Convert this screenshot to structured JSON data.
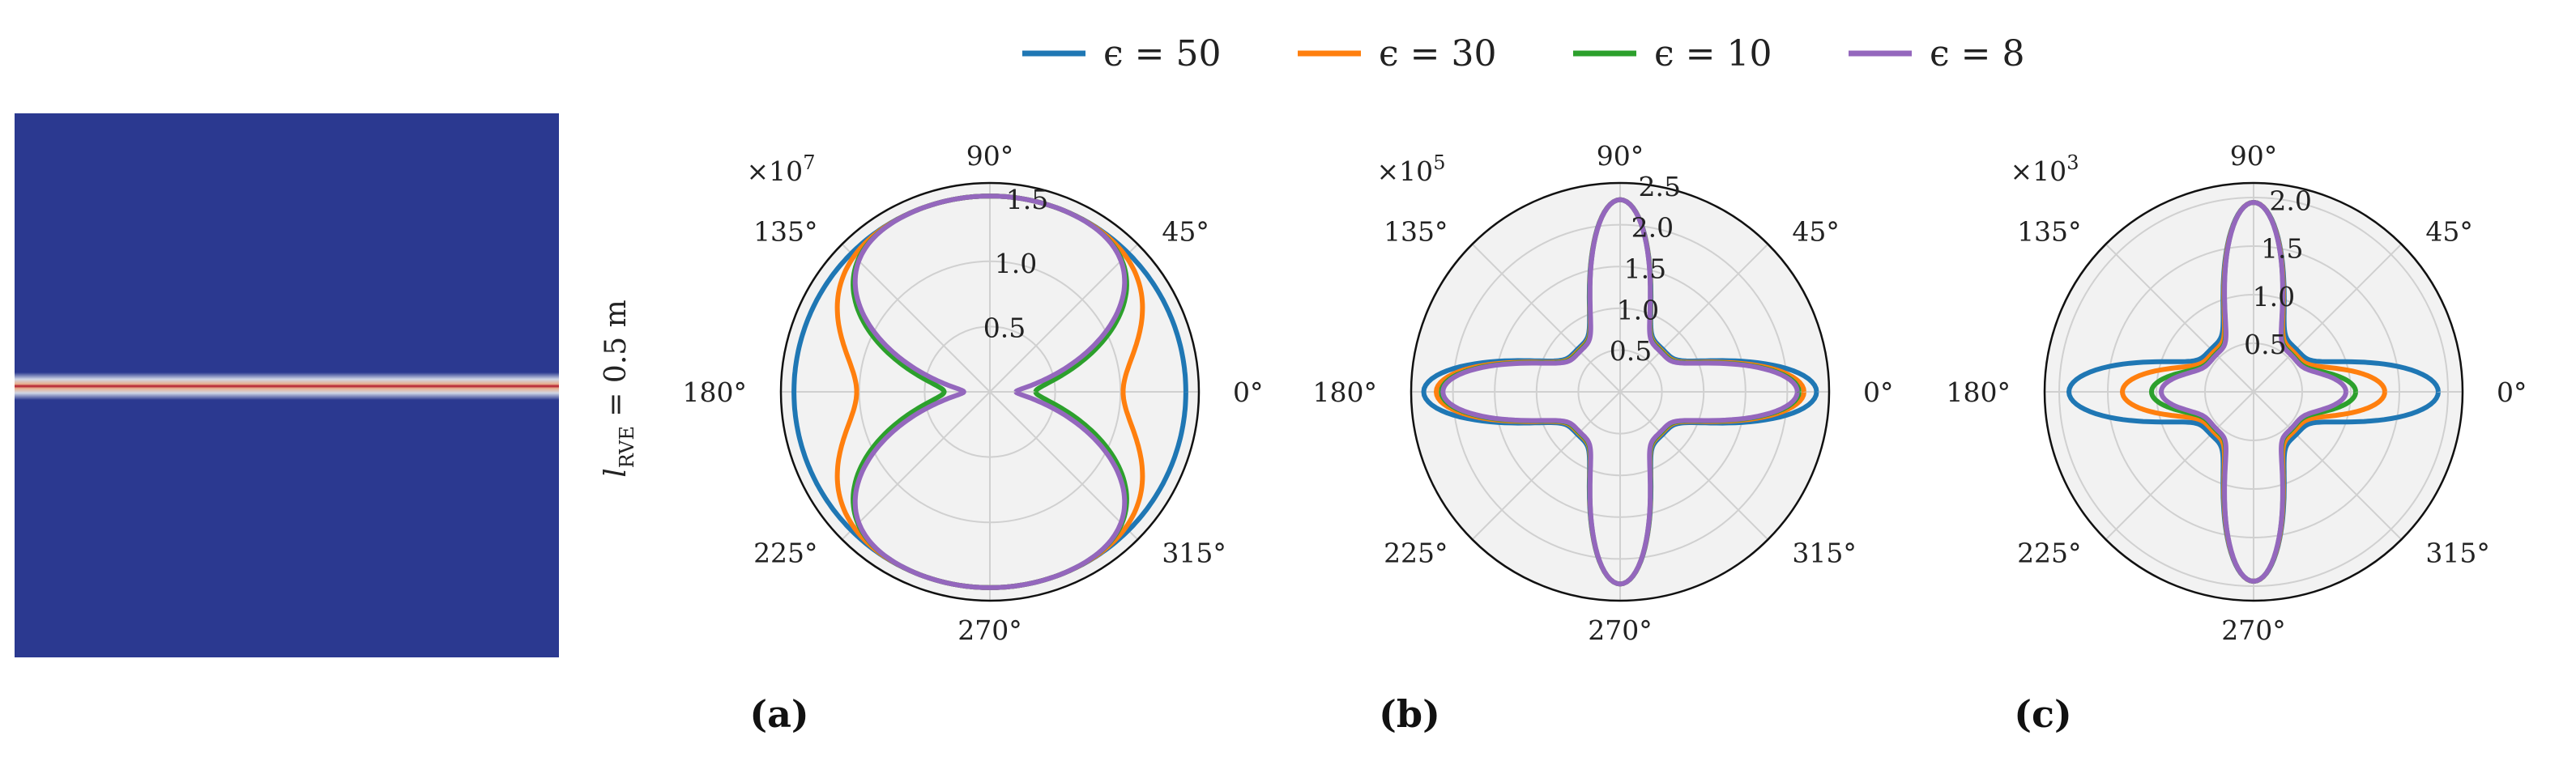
{
  "legend": [
    {
      "label": "ϵ = 50",
      "color": "#1f77b4"
    },
    {
      "label": "ϵ = 30",
      "color": "#ff7f0e"
    },
    {
      "label": "ϵ = 10",
      "color": "#2ca02c"
    },
    {
      "label": "ϵ = 8",
      "color": "#9467bd"
    }
  ],
  "side_label": "l_RVE = 0.5 m",
  "field_colors": {
    "background": "#2b3990",
    "band_core": "#b2182b",
    "band_edge": "#e0e0e0"
  },
  "chart_data": [
    {
      "type": "polar-line",
      "panel_label": "(a)",
      "scale_label": "×10^7",
      "angle_ticks": [
        "0°",
        "45°",
        "90°",
        "135°",
        "180°",
        "225°",
        "270°",
        "315°"
      ],
      "radial_ticks": [
        "0.5",
        "1.0",
        "1.5"
      ],
      "rlim": [
        0,
        1.6
      ],
      "grid": true,
      "series": [
        {
          "name": "ϵ = 50",
          "color": "#1f77b4",
          "r_min": 1.5,
          "r_max": 1.5,
          "shape": 0
        },
        {
          "name": "ϵ = 30",
          "color": "#ff7f0e",
          "r_min": 1.02,
          "r_max": 1.5,
          "shape": 0
        },
        {
          "name": "ϵ = 10",
          "color": "#2ca02c",
          "r_min": 0.35,
          "r_max": 1.5,
          "shape": 0
        },
        {
          "name": "ϵ = 8",
          "color": "#9467bd",
          "r_min": 0.2,
          "r_max": 1.5,
          "shape": 0
        }
      ]
    },
    {
      "type": "polar-line",
      "panel_label": "(b)",
      "scale_label": "×10^5",
      "angle_ticks": [
        "0°",
        "45°",
        "90°",
        "135°",
        "180°",
        "225°",
        "270°",
        "315°"
      ],
      "radial_ticks": [
        "0.5",
        "1.0",
        "1.5",
        "2.0",
        "2.5"
      ],
      "rlim": [
        0,
        2.5
      ],
      "grid": true,
      "series": [
        {
          "name": "ϵ = 50",
          "color": "#1f77b4",
          "r_h": 2.35,
          "r_v": 2.3,
          "r_d": 0.72,
          "shape": 1
        },
        {
          "name": "ϵ = 30",
          "color": "#ff7f0e",
          "r_h": 2.2,
          "r_v": 2.3,
          "r_d": 0.7,
          "shape": 1
        },
        {
          "name": "ϵ = 10",
          "color": "#2ca02c",
          "r_h": 2.14,
          "r_v": 2.3,
          "r_d": 0.69,
          "shape": 1
        },
        {
          "name": "ϵ = 8",
          "color": "#9467bd",
          "r_h": 2.12,
          "r_v": 2.3,
          "r_d": 0.68,
          "shape": 1
        }
      ]
    },
    {
      "type": "polar-line",
      "panel_label": "(c)",
      "scale_label": "×10^3",
      "angle_ticks": [
        "0°",
        "45°",
        "90°",
        "135°",
        "180°",
        "225°",
        "270°",
        "315°"
      ],
      "radial_ticks": [
        "0.5",
        "1.0",
        "1.5",
        "2.0"
      ],
      "rlim": [
        0,
        2.15
      ],
      "grid": true,
      "series": [
        {
          "name": "ϵ = 50",
          "color": "#1f77b4",
          "r_h": 1.9,
          "r_v": 1.95,
          "r_d": 0.62,
          "shape": 1
        },
        {
          "name": "ϵ = 30",
          "color": "#ff7f0e",
          "r_h": 1.35,
          "r_v": 1.95,
          "r_d": 0.58,
          "shape": 1
        },
        {
          "name": "ϵ = 10",
          "color": "#2ca02c",
          "r_h": 1.05,
          "r_v": 1.95,
          "r_d": 0.55,
          "shape": 1
        },
        {
          "name": "ϵ = 8",
          "color": "#9467bd",
          "r_h": 0.95,
          "r_v": 1.95,
          "r_d": 0.54,
          "shape": 1
        }
      ]
    }
  ]
}
